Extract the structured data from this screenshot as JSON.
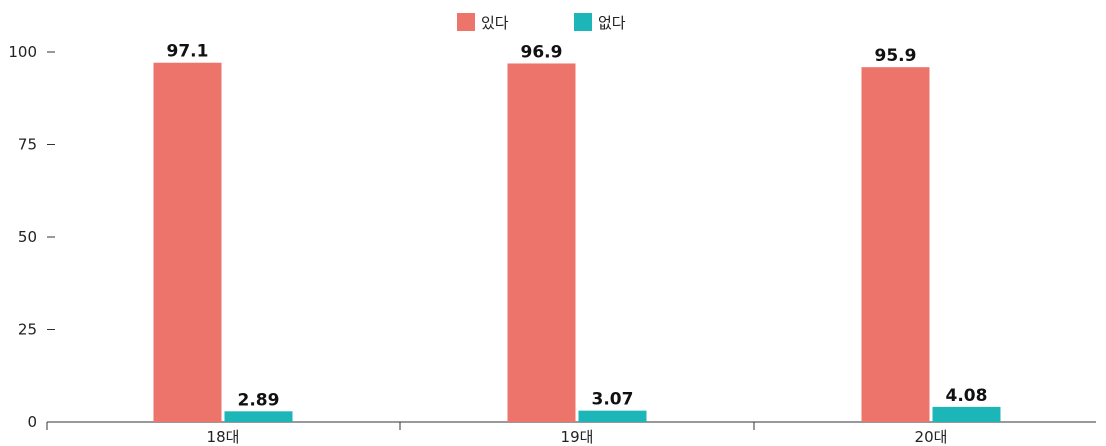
{
  "chart_data": {
    "type": "bar",
    "categories": [
      "18대",
      "19대",
      "20대"
    ],
    "series": [
      {
        "name": "있다",
        "color": "#ec746a",
        "values": [
          97.1,
          96.9,
          95.9
        ],
        "labels": [
          "97.1",
          "96.9",
          "95.9"
        ]
      },
      {
        "name": "없다",
        "color": "#1db6b8",
        "values": [
          2.89,
          3.07,
          4.08
        ],
        "labels": [
          "2.89",
          "3.07",
          "4.08"
        ]
      }
    ],
    "ylim": [
      0,
      100
    ],
    "yticks": [
      0,
      25,
      50,
      75,
      100
    ],
    "grid": false,
    "legend": "top-center",
    "title": "",
    "xlabel": "",
    "ylabel": ""
  }
}
